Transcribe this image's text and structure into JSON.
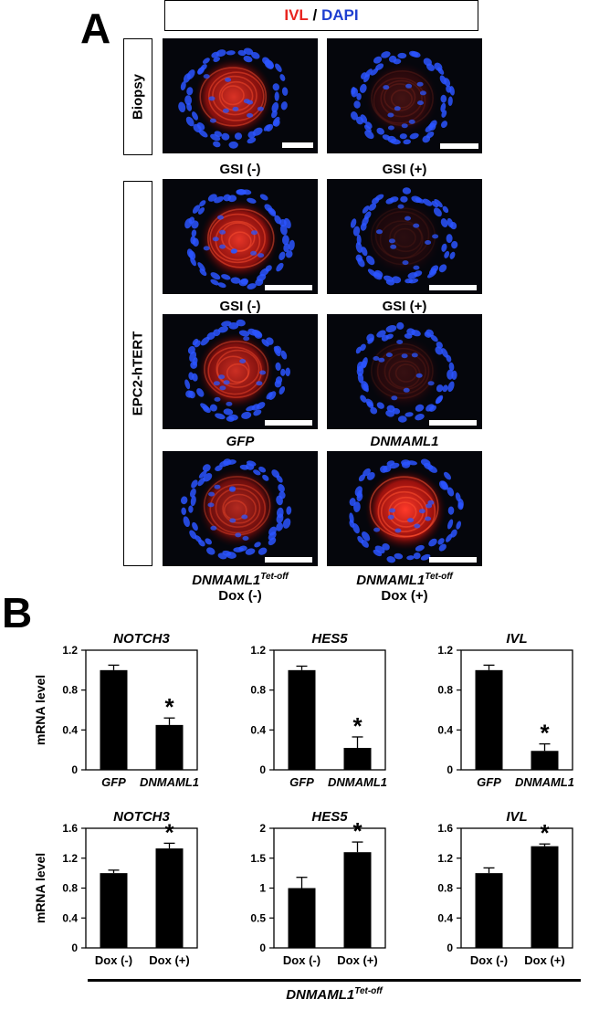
{
  "panel_a": {
    "letter": "A",
    "stain_label_ivl": "IVL",
    "stain_label_sep": " / ",
    "stain_label_dapi": "DAPI",
    "stain_colors": {
      "ivl": "#e8231e",
      "dapi": "#1f3fd0"
    },
    "row_label_biopsy": "Biopsy",
    "row_label_cells": "EPC2-hTERT",
    "captions": {
      "r1_left": "GSI (-)",
      "r1_right": "GSI (+)",
      "r2_left": "GSI (-)",
      "r2_right": "GSI (+)",
      "r3_left": "GFP",
      "r3_right": "DNMAML1",
      "r4_left_main": "DNMAML1",
      "r4_left_sup": "Tet-off",
      "r4_left_sub": "Dox (-)",
      "r4_right_main": "DNMAML1",
      "r4_right_sup": "Tet-off",
      "r4_right_sub": "Dox (+)"
    }
  },
  "panel_b": {
    "letter": "B",
    "ylabel": "mRNA level",
    "bottom_label_main": "DNMAML1",
    "bottom_label_sup": "Tet-off"
  },
  "chart_data": [
    {
      "type": "bar",
      "title": "NOTCH3",
      "categories": [
        "GFP",
        "DNMAML1"
      ],
      "values": [
        1.0,
        0.45
      ],
      "errors": [
        0.05,
        0.07
      ],
      "significant": [
        false,
        true
      ],
      "ylim": [
        0,
        1.2
      ],
      "yticks": [
        "0",
        "0.4",
        "0.8",
        "1.2"
      ],
      "ylabel": "mRNA level",
      "italic_categories": true
    },
    {
      "type": "bar",
      "title": "HES5",
      "categories": [
        "GFP",
        "DNMAML1"
      ],
      "values": [
        1.0,
        0.22
      ],
      "errors": [
        0.04,
        0.11
      ],
      "significant": [
        false,
        true
      ],
      "ylim": [
        0,
        1.2
      ],
      "yticks": [
        "0",
        "0.4",
        "0.8",
        "1.2"
      ],
      "ylabel": "",
      "italic_categories": true
    },
    {
      "type": "bar",
      "title": "IVL",
      "categories": [
        "GFP",
        "DNMAML1"
      ],
      "values": [
        1.0,
        0.19
      ],
      "errors": [
        0.05,
        0.07
      ],
      "significant": [
        false,
        true
      ],
      "ylim": [
        0,
        1.2
      ],
      "yticks": [
        "0",
        "0.4",
        "0.8",
        "1.2"
      ],
      "ylabel": "",
      "italic_categories": true
    },
    {
      "type": "bar",
      "title": "NOTCH3",
      "categories": [
        "Dox (-)",
        "Dox (+)"
      ],
      "values": [
        1.0,
        1.33
      ],
      "errors": [
        0.04,
        0.07
      ],
      "significant": [
        false,
        true
      ],
      "ylim": [
        0,
        1.6
      ],
      "yticks": [
        "0",
        "0.4",
        "0.8",
        "1.2",
        "1.6"
      ],
      "ylabel": "mRNA level",
      "italic_categories": false
    },
    {
      "type": "bar",
      "title": "HES5",
      "categories": [
        "Dox (-)",
        "Dox (+)"
      ],
      "values": [
        1.0,
        1.6
      ],
      "errors": [
        0.18,
        0.17
      ],
      "significant": [
        false,
        true
      ],
      "ylim": [
        0,
        2
      ],
      "yticks": [
        "0",
        "0.5",
        "1",
        "1.5",
        "2"
      ],
      "ylabel": "",
      "italic_categories": false
    },
    {
      "type": "bar",
      "title": "IVL",
      "categories": [
        "Dox (-)",
        "Dox (+)"
      ],
      "values": [
        1.0,
        1.36
      ],
      "errors": [
        0.07,
        0.03
      ],
      "significant": [
        false,
        true
      ],
      "ylim": [
        0,
        1.6
      ],
      "yticks": [
        "0",
        "0.4",
        "0.8",
        "1.2",
        "1.6"
      ],
      "ylabel": "",
      "italic_categories": false
    }
  ]
}
